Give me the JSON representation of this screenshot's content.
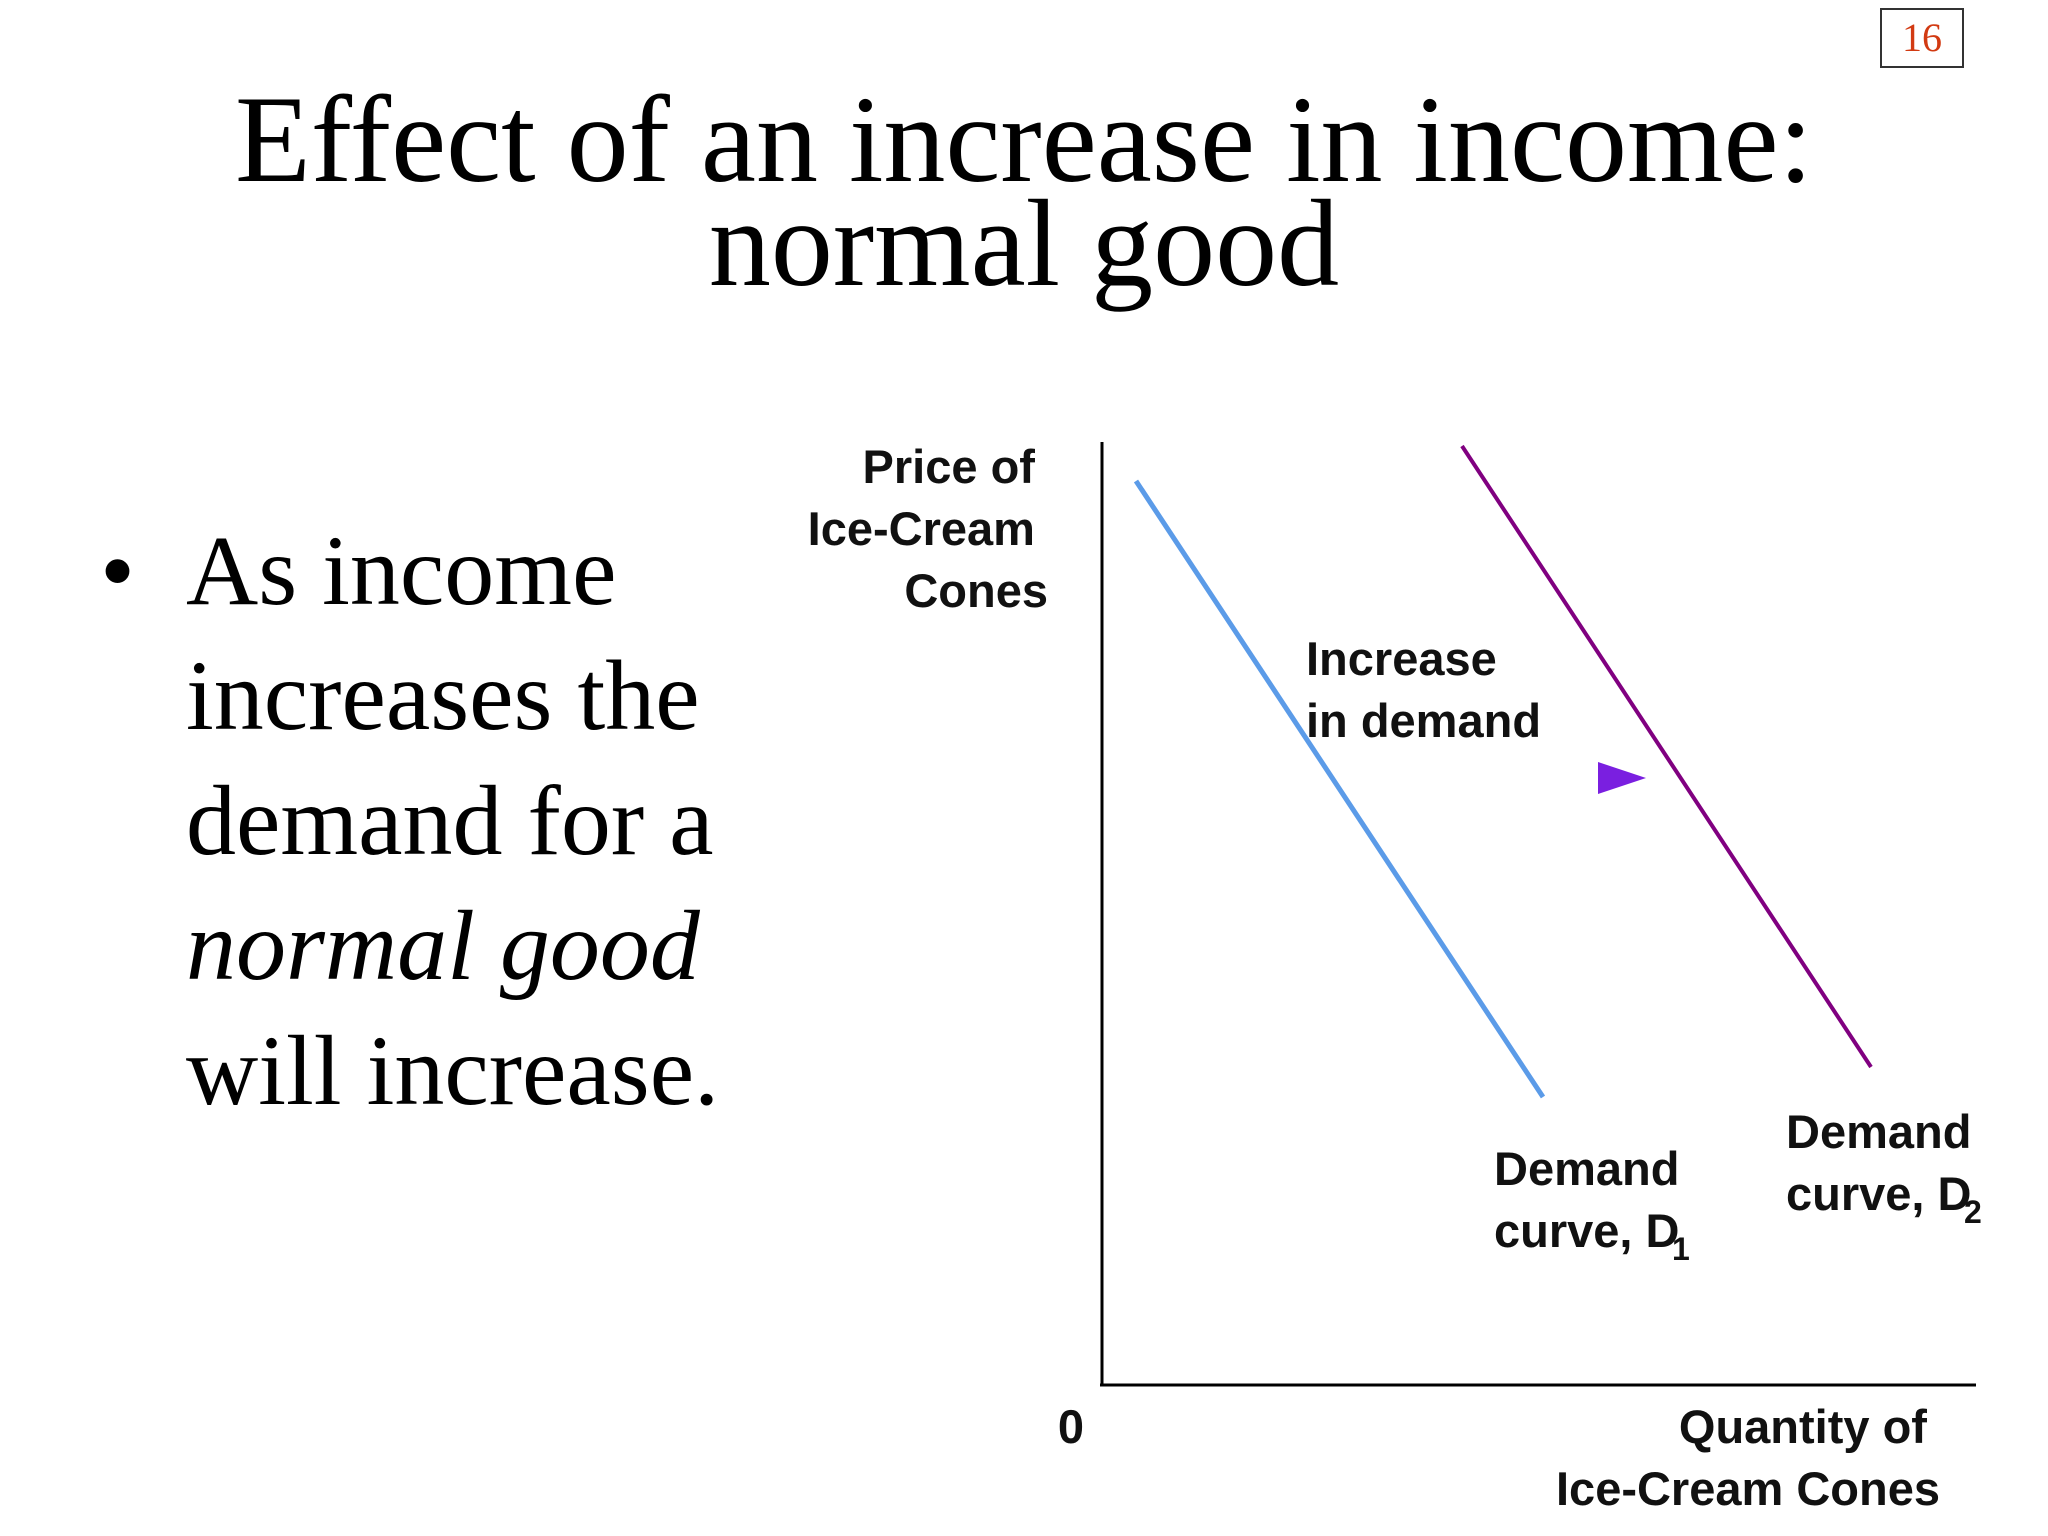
{
  "page_number": "16",
  "title": {
    "line1": "Effect of an increase in income:",
    "line2": "normal good"
  },
  "bullet": {
    "marker": "•",
    "line1": "As income",
    "line2": "increases the",
    "line3": "demand for a",
    "line4_italic": "normal good",
    "line5": "will increase."
  },
  "diagram": {
    "y_axis_label": [
      "Price of",
      "Ice-Cream",
      "Cones"
    ],
    "x_axis_label": [
      "Quantity of",
      "Ice-Cream Cones"
    ],
    "origin_label": "0",
    "shift_label": [
      "Increase",
      "in demand"
    ],
    "curve_d1": {
      "line1": "Demand",
      "line2": "curve, D",
      "subscript": "1",
      "color": "#5b9be8"
    },
    "curve_d2": {
      "line1": "Demand",
      "line2": "curve, D",
      "subscript": "2",
      "color": "#800080"
    },
    "arrow_color": "#8a2be2"
  }
}
